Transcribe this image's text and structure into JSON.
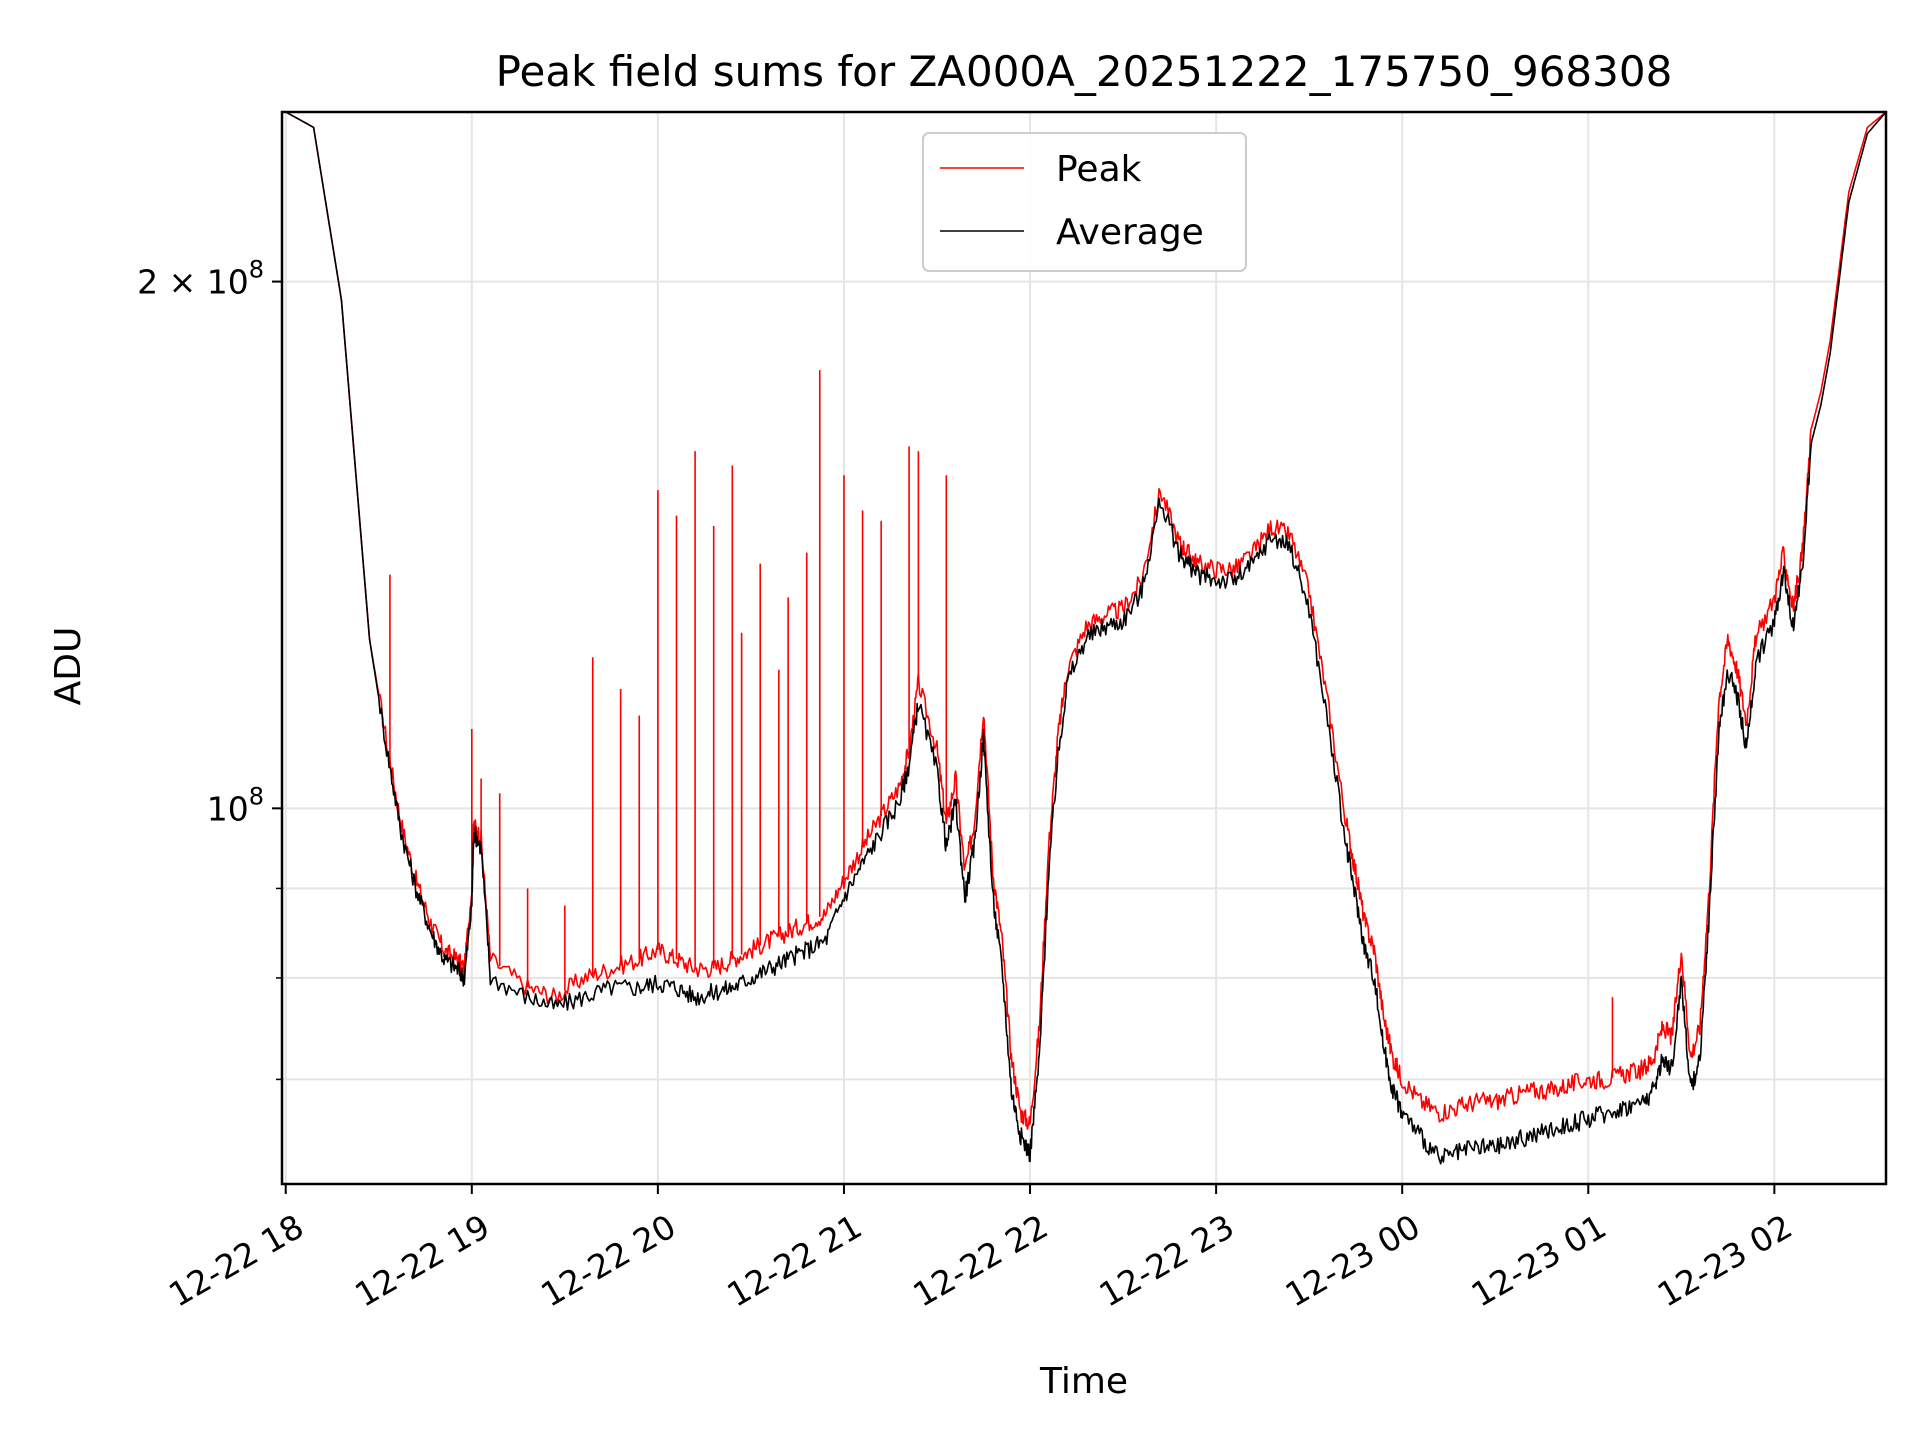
{
  "chart_data": {
    "type": "line",
    "title": "Peak field sums for ZA000A_20251222_175750_968308",
    "xlabel": "Time",
    "ylabel": "ADU",
    "yscale": "log",
    "grid": true,
    "legend_position": "top-center",
    "xlim_hours": [
      -0.02,
      8.6
    ],
    "ylim": [
      61000000,
      250000000
    ],
    "x_ticks": [
      {
        "value": 0,
        "label": "12-22 18"
      },
      {
        "value": 1,
        "label": "12-22 19"
      },
      {
        "value": 2,
        "label": "12-22 20"
      },
      {
        "value": 3,
        "label": "12-22 21"
      },
      {
        "value": 4,
        "label": "12-22 22"
      },
      {
        "value": 5,
        "label": "12-22 23"
      },
      {
        "value": 6,
        "label": "12-23 00"
      },
      {
        "value": 7,
        "label": "12-23 01"
      },
      {
        "value": 8,
        "label": "12-23 02"
      }
    ],
    "y_major_ticks": [
      {
        "value": 100000000,
        "base": "10",
        "exp": "8"
      },
      {
        "value": 200000000,
        "prefix": "2 × ",
        "base": "10",
        "exp": "8"
      }
    ],
    "y_minor_ticks": [
      70000000,
      80000000,
      90000000
    ],
    "series": [
      {
        "name": "Peak",
        "color": "#ff0000",
        "x": [
          0.0,
          0.15,
          0.3,
          0.45,
          0.55,
          0.62,
          0.7,
          0.78,
          0.85,
          0.92,
          0.96,
          1.0,
          1.01,
          1.05,
          1.1,
          1.3,
          1.45,
          1.6,
          1.75,
          1.9,
          2.0,
          2.1,
          2.2,
          2.3,
          2.4,
          2.5,
          2.6,
          2.7,
          2.8,
          2.9,
          3.0,
          3.1,
          3.2,
          3.3,
          3.35,
          3.4,
          3.5,
          3.55,
          3.6,
          3.65,
          3.7,
          3.75,
          3.8,
          3.85,
          3.9,
          3.95,
          4.0,
          4.05,
          4.1,
          4.15,
          4.2,
          4.3,
          4.4,
          4.5,
          4.6,
          4.7,
          4.8,
          4.85,
          4.9,
          5.0,
          5.1,
          5.2,
          5.3,
          5.4,
          5.5,
          5.6,
          5.7,
          5.75,
          5.8,
          5.85,
          5.9,
          5.95,
          6.0,
          6.1,
          6.2,
          6.3,
          6.4,
          6.5,
          6.6,
          6.7,
          6.8,
          6.9,
          7.0,
          7.1,
          7.2,
          7.3,
          7.35,
          7.4,
          7.45,
          7.5,
          7.55,
          7.6,
          7.65,
          7.7,
          7.75,
          7.8,
          7.85,
          7.9,
          8.0,
          8.05,
          8.1,
          8.15,
          8.2,
          8.25,
          8.3,
          8.4,
          8.5,
          8.6
        ],
        "y": [
          250000000,
          245000000,
          195000000,
          125000000,
          108000000,
          98000000,
          91000000,
          86000000,
          83000000,
          82000000,
          81000000,
          90000000,
          98000000,
          96000000,
          82000000,
          79000000,
          78000000,
          80000000,
          81000000,
          82000000,
          83000000,
          82000000,
          81000000,
          81000000,
          82000000,
          83000000,
          84000000,
          85000000,
          86000000,
          87000000,
          91000000,
          95000000,
          99000000,
          103000000,
          108000000,
          118000000,
          108000000,
          98000000,
          104000000,
          92000000,
          98000000,
          114000000,
          92000000,
          84000000,
          72000000,
          67000000,
          66000000,
          75000000,
          95000000,
          110000000,
          120000000,
          127000000,
          129000000,
          130000000,
          135000000,
          152000000,
          142000000,
          140000000,
          138000000,
          137000000,
          137000000,
          140000000,
          145000000,
          143000000,
          133000000,
          115000000,
          98000000,
          92000000,
          86000000,
          83000000,
          76000000,
          72000000,
          70000000,
          68000000,
          67000000,
          67500000,
          68000000,
          68000000,
          68500000,
          69000000,
          69000000,
          69500000,
          70000000,
          70000000,
          70500000,
          71000000,
          72000000,
          75000000,
          74000000,
          83000000,
          72000000,
          75000000,
          90000000,
          115000000,
          125000000,
          120000000,
          112000000,
          125000000,
          132000000,
          140000000,
          130000000,
          140000000,
          165000000,
          173000000,
          185000000,
          225000000,
          245000000,
          250000000
        ],
        "spikes": [
          {
            "x": 0.56,
            "y": 136000000
          },
          {
            "x": 1.0,
            "y": 111000000
          },
          {
            "x": 1.05,
            "y": 104000000
          },
          {
            "x": 1.15,
            "y": 102000000
          },
          {
            "x": 1.3,
            "y": 90000000
          },
          {
            "x": 1.5,
            "y": 88000000
          },
          {
            "x": 1.65,
            "y": 122000000
          },
          {
            "x": 1.8,
            "y": 117000000
          },
          {
            "x": 1.9,
            "y": 113000000
          },
          {
            "x": 2.0,
            "y": 152000000
          },
          {
            "x": 2.1,
            "y": 147000000
          },
          {
            "x": 2.2,
            "y": 160000000
          },
          {
            "x": 2.3,
            "y": 145000000
          },
          {
            "x": 2.4,
            "y": 157000000
          },
          {
            "x": 2.45,
            "y": 126000000
          },
          {
            "x": 2.55,
            "y": 138000000
          },
          {
            "x": 2.65,
            "y": 120000000
          },
          {
            "x": 2.7,
            "y": 132000000
          },
          {
            "x": 2.8,
            "y": 140000000
          },
          {
            "x": 2.87,
            "y": 178000000
          },
          {
            "x": 3.0,
            "y": 155000000
          },
          {
            "x": 3.1,
            "y": 148000000
          },
          {
            "x": 3.2,
            "y": 146000000
          },
          {
            "x": 3.35,
            "y": 161000000
          },
          {
            "x": 3.4,
            "y": 160000000
          },
          {
            "x": 3.55,
            "y": 155000000
          },
          {
            "x": 7.13,
            "y": 78000000
          }
        ]
      },
      {
        "name": "Average",
        "color": "#000000",
        "x": [
          0.0,
          0.15,
          0.3,
          0.45,
          0.55,
          0.62,
          0.7,
          0.78,
          0.85,
          0.92,
          0.96,
          1.0,
          1.01,
          1.05,
          1.1,
          1.3,
          1.45,
          1.6,
          1.75,
          1.9,
          2.0,
          2.1,
          2.2,
          2.3,
          2.4,
          2.5,
          2.6,
          2.7,
          2.8,
          2.9,
          3.0,
          3.1,
          3.2,
          3.3,
          3.35,
          3.4,
          3.5,
          3.55,
          3.6,
          3.65,
          3.7,
          3.75,
          3.8,
          3.85,
          3.9,
          3.95,
          4.0,
          4.05,
          4.1,
          4.15,
          4.2,
          4.3,
          4.4,
          4.5,
          4.6,
          4.7,
          4.8,
          4.85,
          4.9,
          5.0,
          5.1,
          5.2,
          5.3,
          5.4,
          5.5,
          5.6,
          5.7,
          5.75,
          5.8,
          5.85,
          5.9,
          5.95,
          6.0,
          6.1,
          6.2,
          6.3,
          6.4,
          6.5,
          6.6,
          6.7,
          6.8,
          6.9,
          7.0,
          7.1,
          7.2,
          7.3,
          7.35,
          7.4,
          7.45,
          7.5,
          7.55,
          7.6,
          7.65,
          7.7,
          7.75,
          7.8,
          7.85,
          7.9,
          8.0,
          8.05,
          8.1,
          8.15,
          8.2,
          8.25,
          8.3,
          8.4,
          8.5,
          8.6
        ],
        "y": [
          250000000,
          245000000,
          195000000,
          125000000,
          107000000,
          97000000,
          90000000,
          85000000,
          82000000,
          81000000,
          80000000,
          88000000,
          97000000,
          95000000,
          80000000,
          78000000,
          77000000,
          78000000,
          79000000,
          79000000,
          79500000,
          79000000,
          78000000,
          78500000,
          79000000,
          80000000,
          81000000,
          82000000,
          83000000,
          84000000,
          89000000,
          93000000,
          97000000,
          101000000,
          106000000,
          115000000,
          105000000,
          95000000,
          101000000,
          89000000,
          95000000,
          110000000,
          89000000,
          81000000,
          69000000,
          65000000,
          63500000,
          72000000,
          92000000,
          107000000,
          118000000,
          125000000,
          127000000,
          128000000,
          133000000,
          150000000,
          140000000,
          138000000,
          136000000,
          135000000,
          135000000,
          138000000,
          143000000,
          141000000,
          130000000,
          112000000,
          95000000,
          89000000,
          83000000,
          80000000,
          73000000,
          69000000,
          67000000,
          65000000,
          63000000,
          63500000,
          64000000,
          64000000,
          64500000,
          65000000,
          65500000,
          66000000,
          66500000,
          67000000,
          67500000,
          68000000,
          69000000,
          72000000,
          71000000,
          80000000,
          69000000,
          72000000,
          87000000,
          110000000,
          120000000,
          116000000,
          108000000,
          121000000,
          128000000,
          137000000,
          127000000,
          137000000,
          162000000,
          170000000,
          182000000,
          222000000,
          243000000,
          250000000
        ]
      }
    ]
  }
}
